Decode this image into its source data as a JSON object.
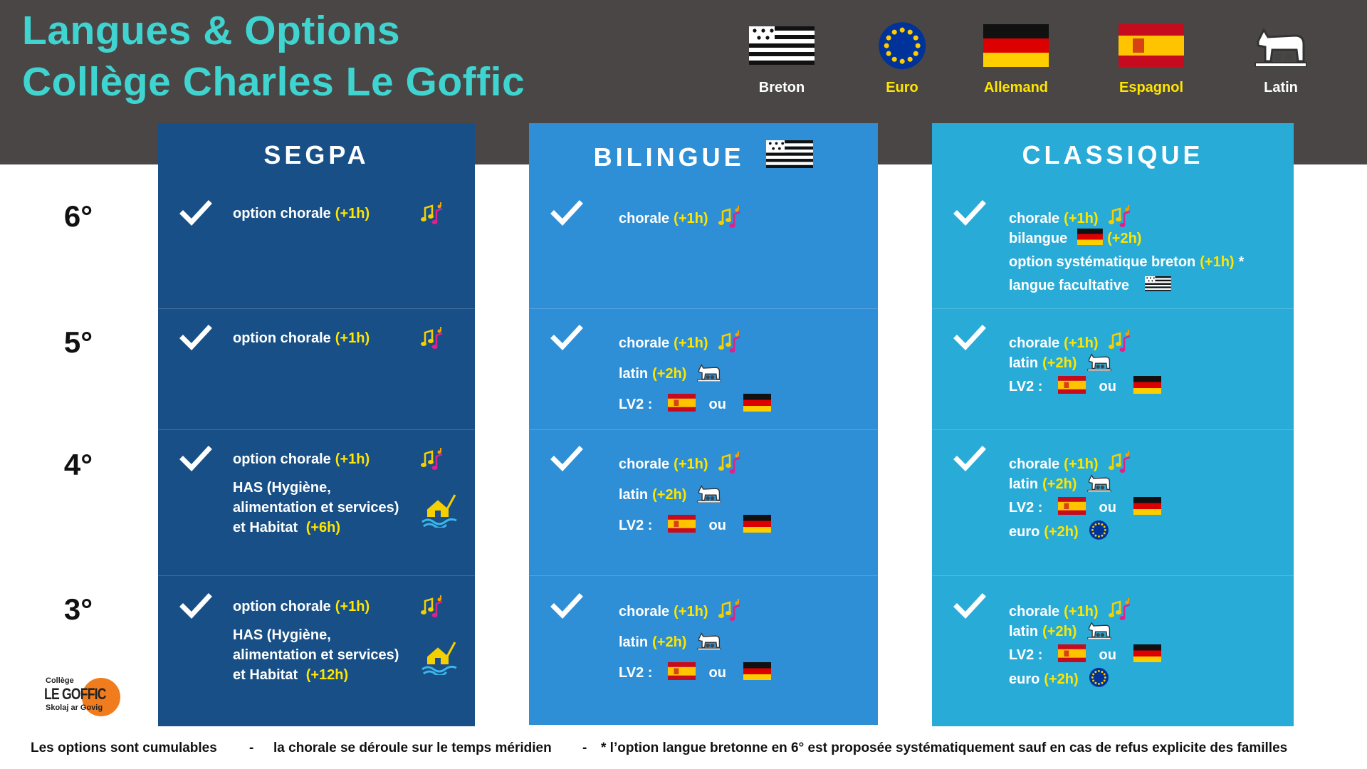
{
  "header": {
    "title_lines": [
      "Langues & Options",
      "Collège Charles Le Goffic"
    ]
  },
  "languages": [
    "Breton",
    "Euro",
    "Allemand",
    "Espagnol",
    "Latin"
  ],
  "levels": [
    "6°",
    "5°",
    "4°",
    "3°"
  ],
  "columns": [
    {
      "title": "SEGPA",
      "cells": [
        [
          {
            "text": "option  chorale",
            "hours": "(+1h)"
          }
        ],
        [
          {
            "text": "option  chorale",
            "hours": "(+1h)"
          }
        ],
        [
          {
            "text": "option  chorale",
            "hours": "(+1h)"
          },
          {
            "text": "HAS (Hygiène, alimentation et services) et Habitat",
            "hours": "(+6h)"
          }
        ],
        [
          {
            "text": "option chorale",
            "hours": "(+1h)"
          },
          {
            "text": "HAS (Hygiène, alimentation et services) et Habitat",
            "hours": "(+12h)"
          }
        ]
      ]
    },
    {
      "title": "BILINGUE",
      "cells": [
        [
          {
            "text": "chorale",
            "hours": "(+1h)"
          }
        ],
        [
          {
            "text": "chorale",
            "hours": "(+1h)"
          },
          {
            "text": "latin",
            "hours": "(+2h)"
          },
          {
            "text": "LV2 :",
            "or": "ou"
          }
        ],
        [
          {
            "text": "chorale",
            "hours": "(+1h)"
          },
          {
            "text": "latin",
            "hours": "(+2h)"
          },
          {
            "text": "LV2 :",
            "or": "ou"
          }
        ],
        [
          {
            "text": "chorale",
            "hours": "(+1h)"
          },
          {
            "text": "latin",
            "hours": "(+2h)"
          },
          {
            "text": "LV2 :",
            "or": "ou"
          }
        ]
      ]
    },
    {
      "title": "CLASSIQUE",
      "cells": [
        [
          {
            "text": "chorale",
            "hours": "(+1h)"
          },
          {
            "text": "bilangue",
            "hours": "(+2h)"
          },
          {
            "text": "option systématique breton",
            "hours": "(+1h)",
            "note": "*"
          },
          {
            "text": "langue facultative"
          }
        ],
        [
          {
            "text": "chorale",
            "hours": "(+1h)"
          },
          {
            "text": "latin",
            "hours": "(+2h)"
          },
          {
            "text": "LV2 :",
            "or": "ou"
          }
        ],
        [
          {
            "text": "chorale",
            "hours": "(+1h)"
          },
          {
            "text": "latin",
            "hours": "(+2h)"
          },
          {
            "text": "LV2 :",
            "or": "ou"
          },
          {
            "text": "euro",
            "hours": "(+2h)"
          }
        ],
        [
          {
            "text": "chorale",
            "hours": "(+1h)"
          },
          {
            "text": "latin",
            "hours": "(+2h)"
          },
          {
            "text": "LV2 :",
            "or": "ou"
          },
          {
            "text": "euro",
            "hours": "(+2h)"
          }
        ]
      ]
    }
  ],
  "logo": {
    "top": "Collège",
    "main": "LE GOFFIC",
    "sub": "Skolaj ar Govig"
  },
  "footer": [
    "Les options sont cumulables",
    "-",
    "la chorale se déroule sur le temps méridien",
    "-",
    "* l’option langue bretonne en 6° est proposée systématiquement  sauf en cas de refus explicite des familles"
  ]
}
